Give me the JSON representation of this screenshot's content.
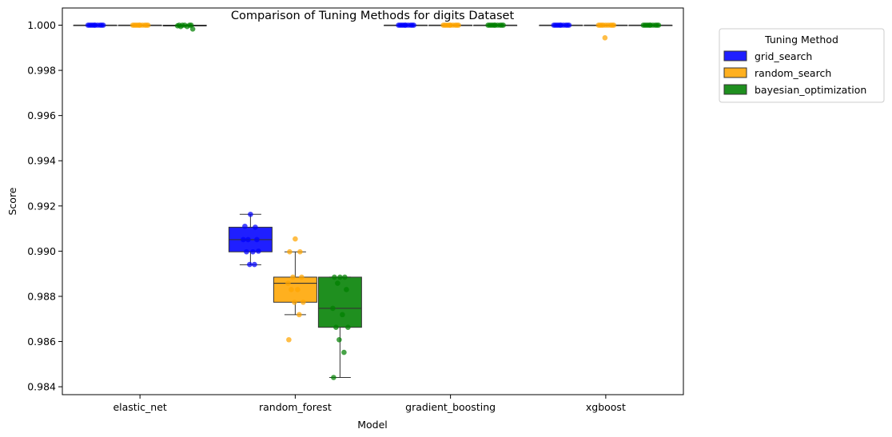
{
  "chart_data": {
    "type": "box",
    "title": "Comparison of Tuning Methods for digits Dataset",
    "xlabel": "Model",
    "ylabel": "Score",
    "categories": [
      "elastic_net",
      "random_forest",
      "gradient_boosting",
      "xgboost"
    ],
    "ylim": [
      0.98365,
      1.00076
    ],
    "yticks": [
      0.984,
      0.986,
      0.988,
      0.99,
      0.992,
      0.994,
      0.996,
      0.998,
      1.0
    ],
    "ytick_labels": [
      "0.984",
      "0.986",
      "0.988",
      "0.990",
      "0.992",
      "0.994",
      "0.996",
      "0.998",
      "1.000"
    ],
    "grid": false,
    "legend": {
      "title": "Tuning Method",
      "placement": "outside-upper-right"
    },
    "series": [
      {
        "name": "grid_search",
        "color": "#0000ff",
        "boxes": [
          {
            "category": "elastic_net",
            "whislo": 1.0,
            "q1": 1.0,
            "med": 1.0,
            "q3": 1.0,
            "whishi": 1.0,
            "points": [
              1.0,
              1.0,
              1.0,
              1.0,
              1.0,
              1.0,
              1.0,
              1.0,
              1.0,
              1.0
            ]
          },
          {
            "category": "random_forest",
            "whislo": 0.9894,
            "q1": 0.98997,
            "med": 0.99051,
            "q3": 0.99106,
            "whishi": 0.99163,
            "points": [
              0.99163,
              0.9911,
              0.99106,
              0.99051,
              0.99051,
              0.99051,
              0.98997,
              0.98997,
              0.99,
              0.98941,
              0.98941
            ]
          },
          {
            "category": "gradient_boosting",
            "whislo": 1.0,
            "q1": 1.0,
            "med": 1.0,
            "q3": 1.0,
            "whishi": 1.0,
            "points": [
              1.0,
              1.0,
              1.0,
              1.0,
              1.0,
              1.0,
              1.0,
              1.0,
              1.0,
              1.0
            ]
          },
          {
            "category": "xgboost",
            "whislo": 1.0,
            "q1": 1.0,
            "med": 1.0,
            "q3": 1.0,
            "whishi": 1.0,
            "points": [
              1.0,
              1.0,
              1.0,
              1.0,
              1.0,
              1.0,
              1.0,
              1.0,
              1.0,
              1.0
            ]
          }
        ]
      },
      {
        "name": "random_search",
        "color": "#ffa500",
        "boxes": [
          {
            "category": "elastic_net",
            "whislo": 1.0,
            "q1": 1.0,
            "med": 1.0,
            "q3": 1.0,
            "whishi": 1.0,
            "points": [
              1.0,
              1.0,
              1.0,
              1.0,
              1.0,
              1.0,
              1.0,
              1.0,
              1.0,
              1.0
            ]
          },
          {
            "category": "random_forest",
            "whislo": 0.98719,
            "q1": 0.98774,
            "med": 0.98858,
            "q3": 0.98885,
            "whishi": 0.98997,
            "points": [
              0.99054,
              0.98997,
              0.98997,
              0.98885,
              0.98885,
              0.98858,
              0.9883,
              0.9883,
              0.98774,
              0.98774,
              0.98719,
              0.98608
            ]
          },
          {
            "category": "gradient_boosting",
            "whislo": 1.0,
            "q1": 1.0,
            "med": 1.0,
            "q3": 1.0,
            "whishi": 1.0,
            "points": [
              1.0,
              1.0,
              1.0,
              1.0,
              1.0,
              1.0,
              1.0,
              1.0,
              1.0,
              1.0
            ]
          },
          {
            "category": "xgboost",
            "whislo": 1.0,
            "q1": 1.0,
            "med": 1.0,
            "q3": 1.0,
            "whishi": 1.0,
            "points": [
              1.0,
              1.0,
              1.0,
              1.0,
              1.0,
              1.0,
              1.0,
              1.0,
              1.0,
              0.99944
            ]
          }
        ]
      },
      {
        "name": "bayesian_optimization",
        "color": "#008000",
        "boxes": [
          {
            "category": "elastic_net",
            "whislo": 0.99997,
            "q1": 0.99997,
            "med": 0.99997,
            "q3": 1.0,
            "whishi": 1.0,
            "points": [
              1.0,
              1.0,
              1.0,
              1.0,
              1.0,
              0.99997,
              0.99994,
              0.99994,
              0.99983
            ]
          },
          {
            "category": "random_forest",
            "whislo": 0.98441,
            "q1": 0.98663,
            "med": 0.98747,
            "q3": 0.98885,
            "whishi": 0.98885,
            "points": [
              0.98885,
              0.98885,
              0.98885,
              0.98858,
              0.9883,
              0.98747,
              0.98719,
              0.98663,
              0.98663,
              0.98608,
              0.98552,
              0.98441
            ]
          },
          {
            "category": "gradient_boosting",
            "whislo": 1.0,
            "q1": 1.0,
            "med": 1.0,
            "q3": 1.0,
            "whishi": 1.0,
            "points": [
              1.0,
              1.0,
              1.0,
              1.0,
              1.0,
              1.0,
              1.0,
              1.0,
              1.0,
              1.0
            ]
          },
          {
            "category": "xgboost",
            "whislo": 1.0,
            "q1": 1.0,
            "med": 1.0,
            "q3": 1.0,
            "whishi": 1.0,
            "points": [
              1.0,
              1.0,
              1.0,
              1.0,
              1.0,
              1.0,
              1.0,
              1.0,
              1.0,
              1.0
            ]
          }
        ]
      }
    ]
  }
}
